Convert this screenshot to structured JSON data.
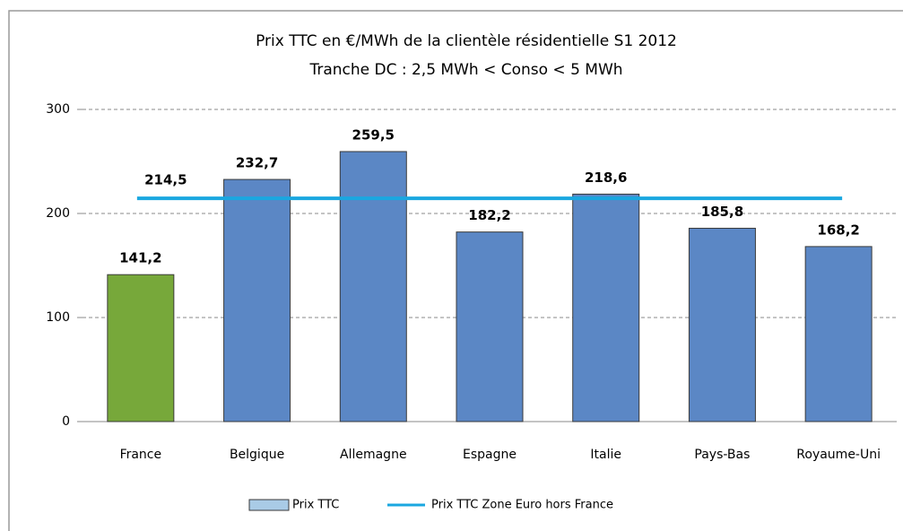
{
  "chart_data": {
    "type": "bar",
    "title": "Prix TTC en €/MWh de la clientèle résidentielle S1 2012",
    "subtitle": "Tranche DC : 2,5 MWh < Conso < 5 MWh",
    "categories": [
      "France",
      "Belgique",
      "Allemagne",
      "Espagne",
      "Italie",
      "Pays-Bas",
      "Royaume-Uni"
    ],
    "series": [
      {
        "name": "Prix TTC",
        "color": "#5b87c5",
        "legend_color": "#a9cbe6",
        "colors": [
          "#77a83a",
          "#5b87c5",
          "#5b87c5",
          "#5b87c5",
          "#5b87c5",
          "#5b87c5",
          "#5b87c5"
        ],
        "values": [
          141.2,
          232.7,
          259.5,
          182.2,
          218.6,
          185.8,
          168.2
        ],
        "value_labels": [
          "141,2",
          "232,7",
          "259,5",
          "182,2",
          "218,6",
          "185,8",
          "168,2"
        ]
      }
    ],
    "reference_line": {
      "name": "Prix TTC Zone Euro hors France",
      "color": "#1aa7e0",
      "value": 214.5,
      "value_label": "214,5"
    },
    "ylim": [
      0,
      300
    ],
    "yticks": [
      0,
      100,
      200,
      300
    ],
    "grid": true,
    "legend": "bottom"
  }
}
